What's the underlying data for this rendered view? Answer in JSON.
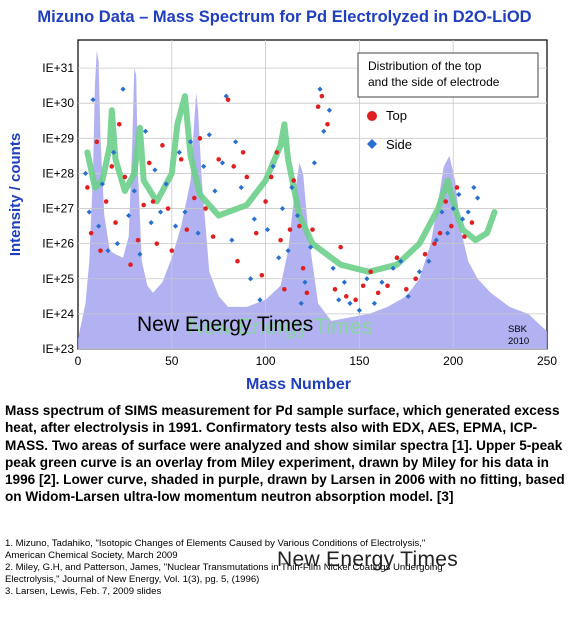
{
  "chart_data": {
    "type": "scatter",
    "title": "Mizuno Data – Mass Spectrum for Pd Electrolyzed in D2O-LiOD",
    "xlabel": "Mass Number",
    "ylabel": "Intensity / counts",
    "xlim": [
      0,
      250
    ],
    "ylim": [
      23,
      31.8
    ],
    "x_ticks": [
      0,
      50,
      100,
      150,
      200,
      250
    ],
    "y_ticks": [
      23,
      24,
      25,
      26,
      27,
      28,
      29,
      30,
      31
    ],
    "y_tick_labels": [
      "IE+23",
      "IE+24",
      "IE+25",
      "IE+26",
      "IE+27",
      "IE+28",
      "IE+29",
      "IE+30",
      "IE+31"
    ],
    "legend": {
      "position": "top-right",
      "heading": [
        "Distribution of the top",
        "and the side of electrode"
      ],
      "entries": [
        "Top",
        "Side"
      ]
    },
    "series": [
      {
        "name": "Top",
        "color": "#e02020",
        "points": [
          [
            5,
            27.6
          ],
          [
            7,
            26.3
          ],
          [
            10,
            28.9
          ],
          [
            12,
            25.8
          ],
          [
            15,
            27.2
          ],
          [
            18,
            28.2
          ],
          [
            20,
            26.6
          ],
          [
            22,
            29.4
          ],
          [
            25,
            27.9
          ],
          [
            28,
            25.4
          ],
          [
            32,
            26.1
          ],
          [
            35,
            27.1
          ],
          [
            38,
            28.3
          ],
          [
            40,
            27.2
          ],
          [
            42,
            26.0
          ],
          [
            45,
            28.8
          ],
          [
            48,
            27.0
          ],
          [
            50,
            25.8
          ],
          [
            55,
            28.4
          ],
          [
            58,
            26.4
          ],
          [
            62,
            27.3
          ],
          [
            65,
            29.0
          ],
          [
            68,
            27.0
          ],
          [
            72,
            26.2
          ],
          [
            75,
            28.4
          ],
          [
            80,
            30.1
          ],
          [
            83,
            28.2
          ],
          [
            85,
            25.5
          ],
          [
            88,
            28.6
          ],
          [
            90,
            27.9
          ],
          [
            95,
            26.3
          ],
          [
            98,
            25.1
          ],
          [
            100,
            27.2
          ],
          [
            103,
            27.9
          ],
          [
            106,
            28.6
          ],
          [
            108,
            26.1
          ],
          [
            110,
            24.7
          ],
          [
            113,
            26.4
          ],
          [
            115,
            27.8
          ],
          [
            118,
            26.5
          ],
          [
            120,
            25.3
          ],
          [
            122,
            24.6
          ],
          [
            125,
            26.4
          ],
          [
            128,
            29.9
          ],
          [
            130,
            30.2
          ],
          [
            133,
            29.4
          ],
          [
            137,
            24.7
          ],
          [
            140,
            25.9
          ],
          [
            143,
            24.5
          ],
          [
            148,
            24.4
          ],
          [
            152,
            24.8
          ],
          [
            156,
            25.2
          ],
          [
            160,
            24.6
          ],
          [
            165,
            24.8
          ],
          [
            170,
            25.6
          ],
          [
            175,
            24.7
          ],
          [
            180,
            25.0
          ],
          [
            185,
            25.7
          ],
          [
            190,
            26.0
          ],
          [
            193,
            26.3
          ],
          [
            196,
            27.2
          ],
          [
            199,
            26.5
          ],
          [
            202,
            27.6
          ],
          [
            206,
            26.2
          ],
          [
            210,
            26.6
          ]
        ]
      },
      {
        "name": "Side",
        "color": "#2a6fd0",
        "points": [
          [
            4,
            28.0
          ],
          [
            6,
            26.9
          ],
          [
            8,
            30.1
          ],
          [
            11,
            26.5
          ],
          [
            13,
            27.7
          ],
          [
            16,
            25.8
          ],
          [
            19,
            28.6
          ],
          [
            21,
            26.0
          ],
          [
            24,
            30.4
          ],
          [
            27,
            26.8
          ],
          [
            30,
            27.5
          ],
          [
            33,
            25.7
          ],
          [
            36,
            29.2
          ],
          [
            39,
            26.6
          ],
          [
            41,
            28.1
          ],
          [
            44,
            26.9
          ],
          [
            47,
            27.7
          ],
          [
            52,
            26.5
          ],
          [
            54,
            28.6
          ],
          [
            57,
            26.9
          ],
          [
            60,
            28.9
          ],
          [
            64,
            26.3
          ],
          [
            67,
            28.2
          ],
          [
            70,
            29.1
          ],
          [
            73,
            27.5
          ],
          [
            77,
            28.3
          ],
          [
            79,
            30.2
          ],
          [
            82,
            26.1
          ],
          [
            84,
            28.9
          ],
          [
            87,
            27.6
          ],
          [
            92,
            25.0
          ],
          [
            94,
            26.7
          ],
          [
            97,
            24.4
          ],
          [
            101,
            26.4
          ],
          [
            104,
            28.2
          ],
          [
            107,
            25.6
          ],
          [
            109,
            27.0
          ],
          [
            112,
            25.8
          ],
          [
            114,
            27.6
          ],
          [
            117,
            26.8
          ],
          [
            119,
            24.3
          ],
          [
            121,
            24.9
          ],
          [
            124,
            25.9
          ],
          [
            126,
            28.3
          ],
          [
            129,
            30.4
          ],
          [
            131,
            29.2
          ],
          [
            134,
            29.8
          ],
          [
            136,
            25.3
          ],
          [
            139,
            24.4
          ],
          [
            142,
            24.9
          ],
          [
            145,
            24.3
          ],
          [
            150,
            24.1
          ],
          [
            154,
            25.0
          ],
          [
            158,
            24.3
          ],
          [
            162,
            24.9
          ],
          [
            168,
            25.3
          ],
          [
            172,
            25.5
          ],
          [
            176,
            24.5
          ],
          [
            182,
            25.2
          ],
          [
            187,
            25.5
          ],
          [
            191,
            26.1
          ],
          [
            194,
            26.9
          ],
          [
            197,
            26.3
          ],
          [
            200,
            27.0
          ],
          [
            203,
            27.4
          ],
          [
            205,
            26.7
          ],
          [
            208,
            26.9
          ],
          [
            211,
            27.6
          ],
          [
            213,
            27.3
          ]
        ]
      }
    ],
    "overlays": [
      {
        "label": "Upper 5-peak green curve (Miley, 1996)",
        "color": "#6ccf8a",
        "points": [
          [
            5,
            28.6
          ],
          [
            9,
            27.6
          ],
          [
            13,
            27.8
          ],
          [
            17,
            28.8
          ],
          [
            18,
            29.8
          ],
          [
            20,
            28.4
          ],
          [
            25,
            27.5
          ],
          [
            30,
            28.0
          ],
          [
            33,
            29.3
          ],
          [
            35,
            27.8
          ],
          [
            42,
            27.2
          ],
          [
            50,
            28.0
          ],
          [
            53,
            29.4
          ],
          [
            57,
            30.2
          ],
          [
            60,
            28.5
          ],
          [
            65,
            27.4
          ],
          [
            75,
            26.8
          ],
          [
            90,
            27.1
          ],
          [
            100,
            27.8
          ],
          [
            108,
            28.8
          ],
          [
            110,
            29.4
          ],
          [
            112,
            28.4
          ],
          [
            118,
            26.8
          ],
          [
            125,
            26.0
          ],
          [
            140,
            25.4
          ],
          [
            155,
            25.2
          ],
          [
            170,
            25.4
          ],
          [
            182,
            26.0
          ],
          [
            192,
            27.0
          ],
          [
            197,
            27.8
          ],
          [
            201,
            27.0
          ],
          [
            205,
            26.4
          ],
          [
            212,
            26.1
          ],
          [
            218,
            26.3
          ],
          [
            222,
            26.9
          ]
        ]
      },
      {
        "label": "Lower shaded purple curve (Larsen, 2006)",
        "color": "#a4a4f0",
        "points": [
          [
            0,
            23.3
          ],
          [
            2,
            23.8
          ],
          [
            4,
            24.3
          ],
          [
            6,
            25.5
          ],
          [
            8,
            28.0
          ],
          [
            9,
            30.5
          ],
          [
            10,
            31.5
          ],
          [
            11,
            31.2
          ],
          [
            12,
            29.0
          ],
          [
            14,
            26.8
          ],
          [
            17,
            25.8
          ],
          [
            20,
            25.7
          ],
          [
            24,
            25.6
          ],
          [
            27,
            26.2
          ],
          [
            29,
            29.0
          ],
          [
            30,
            31.0
          ],
          [
            31,
            30.8
          ],
          [
            32,
            28.0
          ],
          [
            34,
            25.5
          ],
          [
            37,
            24.8
          ],
          [
            40,
            24.6
          ],
          [
            45,
            24.9
          ],
          [
            50,
            25.6
          ],
          [
            55,
            26.5
          ],
          [
            60,
            27.8
          ],
          [
            62,
            29.5
          ],
          [
            63,
            30.3
          ],
          [
            64,
            29.8
          ],
          [
            66,
            27.8
          ],
          [
            70,
            25.2
          ],
          [
            75,
            24.5
          ],
          [
            80,
            24.2
          ],
          [
            90,
            24.2
          ],
          [
            100,
            24.4
          ],
          [
            108,
            24.8
          ],
          [
            112,
            25.8
          ],
          [
            115,
            27.2
          ],
          [
            118,
            28.3
          ],
          [
            120,
            28.0
          ],
          [
            123,
            26.2
          ],
          [
            128,
            24.3
          ],
          [
            135,
            23.8
          ],
          [
            145,
            23.9
          ],
          [
            155,
            24.0
          ],
          [
            165,
            24.2
          ],
          [
            175,
            24.5
          ],
          [
            182,
            25.0
          ],
          [
            188,
            26.0
          ],
          [
            192,
            27.2
          ],
          [
            195,
            28.2
          ],
          [
            198,
            28.5
          ],
          [
            201,
            27.8
          ],
          [
            204,
            26.4
          ],
          [
            208,
            25.5
          ],
          [
            213,
            25.0
          ],
          [
            220,
            24.6
          ],
          [
            230,
            24.2
          ],
          [
            240,
            24.0
          ],
          [
            246,
            23.7
          ],
          [
            250,
            23.5
          ]
        ]
      }
    ],
    "annotations": [
      "SBK",
      "2010"
    ],
    "watermark": "New Energy Times"
  },
  "caption": "Mass spectrum of SIMS measurement for Pd sample surface, which generated excess heat, after electrolysis in 1991. Confirmatory tests also with EDX, AES, EPMA, ICP-MASS. Two areas of surface were analyzed and show similar spectra [1]. Upper 5-peak peak green curve is an overlay from Miley experiment, drawn by Miley for his data in 1996 [2]. Lower curve, shaded in purple, drawn by Larsen in 2006 with no fitting, based on Widom-Larsen ultra-low momentum neutron absorption model. [3]",
  "references": [
    "1. Mizuno, Tadahiko, \"Isotopic Changes of Elements Caused by Various Conditions of Electrolysis,\"",
    "American Chemical Society, March 2009",
    "2. Miley, G.H, and Patterson, James, \"Nuclear Transmutations in Thin-Film Nickel Coatings Undergoing",
    "Electrolysis,\" Journal of New Energy, Vol. 1(3), pg. 5, (1996)",
    "3. Larsen, Lewis, Feb. 7, 2009 slides"
  ],
  "footer_watermark": "New Energy Times"
}
